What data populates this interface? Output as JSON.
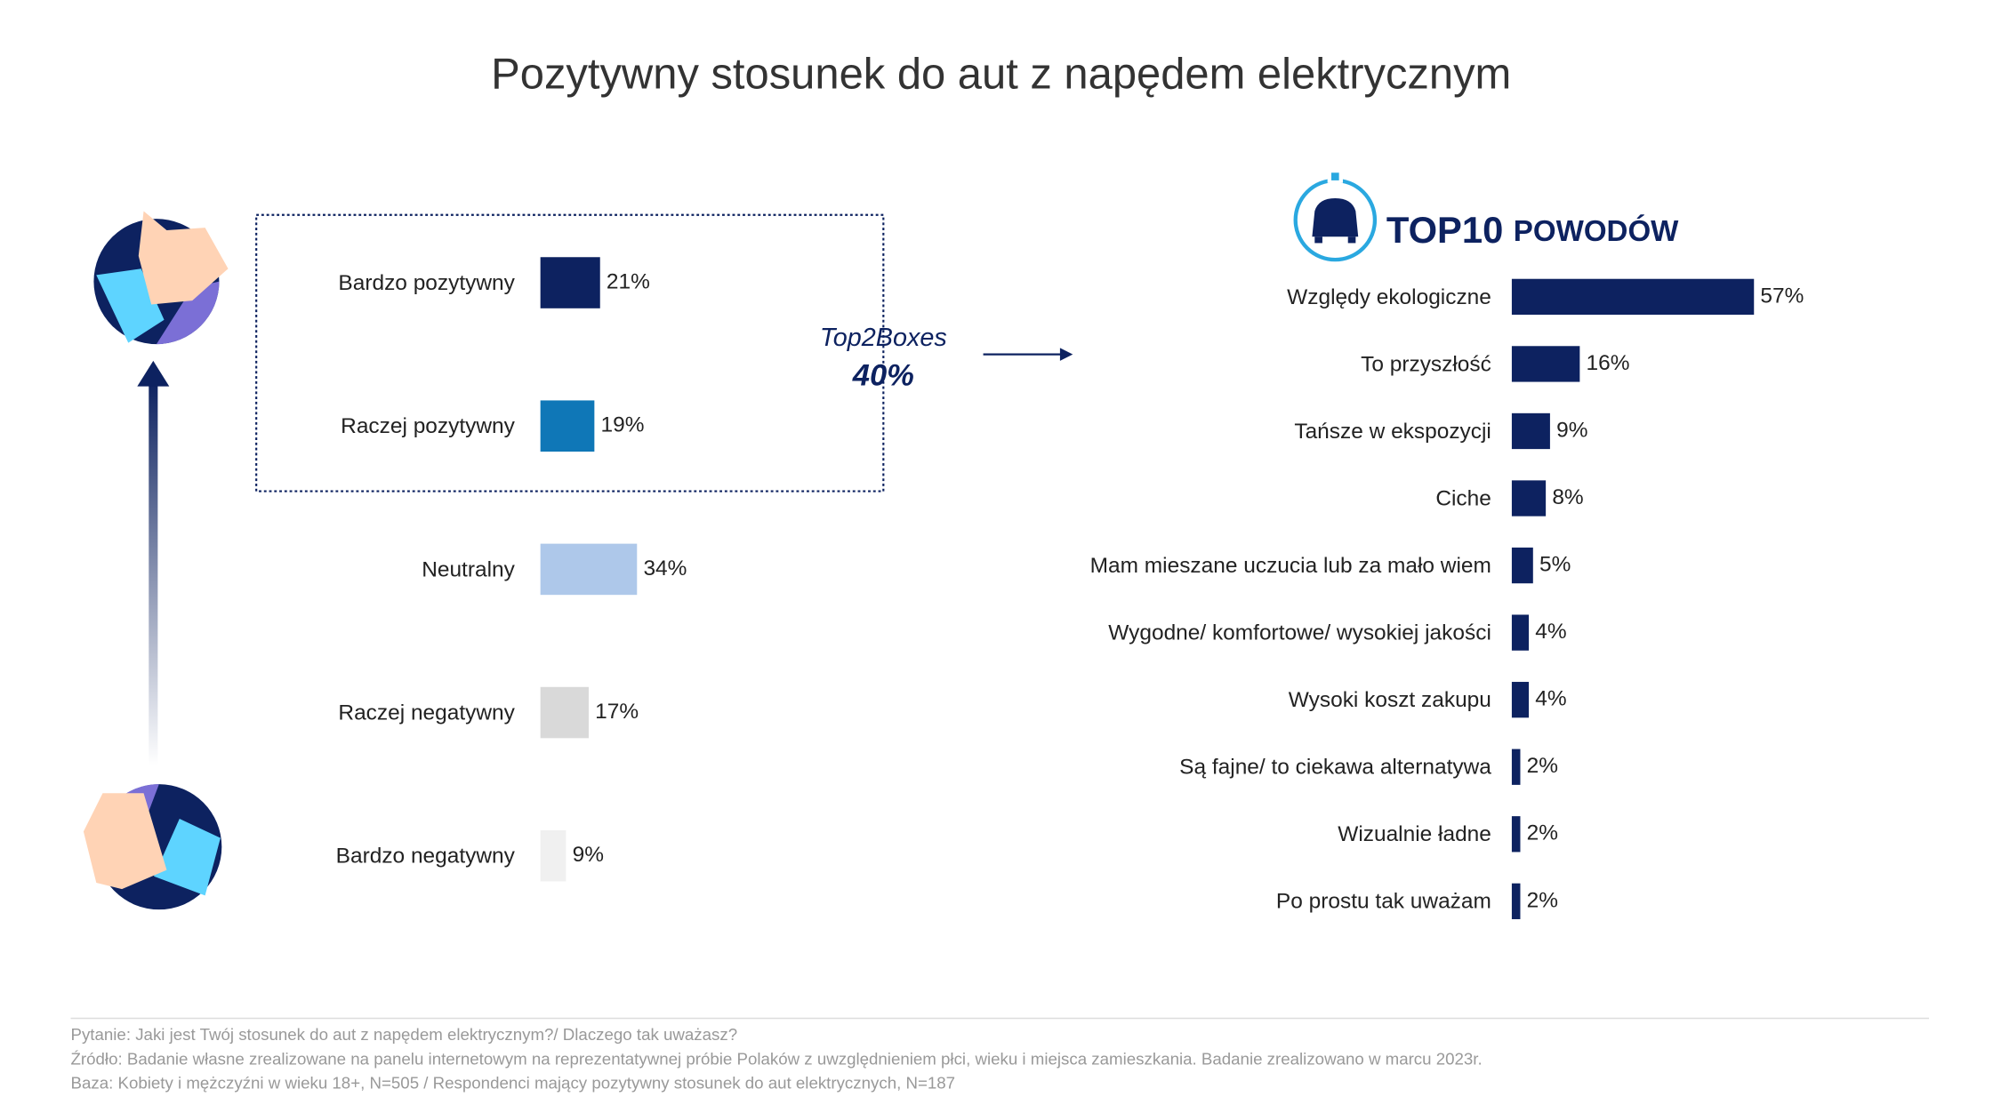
{
  "title": "Pozytywny stosunek do aut z napędem elektrycznym",
  "chart_data": [
    {
      "type": "bar",
      "orientation": "horizontal",
      "categories": [
        "Bardzo pozytywny",
        "Raczej pozytywny",
        "Neutralny",
        "Raczej negatywny",
        "Bardzo negatywny"
      ],
      "values": [
        21,
        19,
        34,
        17,
        9
      ],
      "value_labels": [
        "21%",
        "19%",
        "34%",
        "17%",
        "9%"
      ],
      "colors": [
        "#0d2260",
        "#0f77b7",
        "#aec8ea",
        "#d9d9d9",
        "#f0f0f0"
      ],
      "annotation": [
        "Top2Boxes",
        "40%"
      ]
    },
    {
      "type": "bar",
      "orientation": "horizontal",
      "title": [
        "TOP10",
        "POWODÓW"
      ],
      "categories": [
        "Względy ekologiczne",
        "To przyszłość",
        "Tańsze w ekspozycji",
        "Ciche",
        "Mam mieszane uczucia lub za mało wiem",
        "Wygodne/ komfortowe/ wysokiej jakości",
        "Wysoki koszt zakupu",
        "Są fajne/ to ciekawa alternatywa",
        "Wizualnie ładne",
        "Po prostu tak uważam"
      ],
      "values": [
        57,
        16,
        9,
        8,
        5,
        4,
        4,
        2,
        2,
        2
      ],
      "value_labels": [
        "57%",
        "16%",
        "9%",
        "8%",
        "5%",
        "4%",
        "4%",
        "2%",
        "2%",
        "2%"
      ],
      "color": "#0d2260"
    }
  ],
  "footnotes": [
    "Pytanie: Jaki jest Twój stosunek do aut z napędem elektrycznym?/ Dlaczego tak uważasz?",
    "Źródło: Badanie własne zrealizowane na panelu internetowym na reprezentatywnej próbie Polaków z uwzględnieniem płci, wieku i miejsca zamieszkania. Badanie zrealizowano w marcu 2023r.",
    "Baza: Kobiety i mężczyźni w wieku 18+, N=505 / Respondenci mający pozytywny stosunek do aut elektrycznych, N=187"
  ]
}
